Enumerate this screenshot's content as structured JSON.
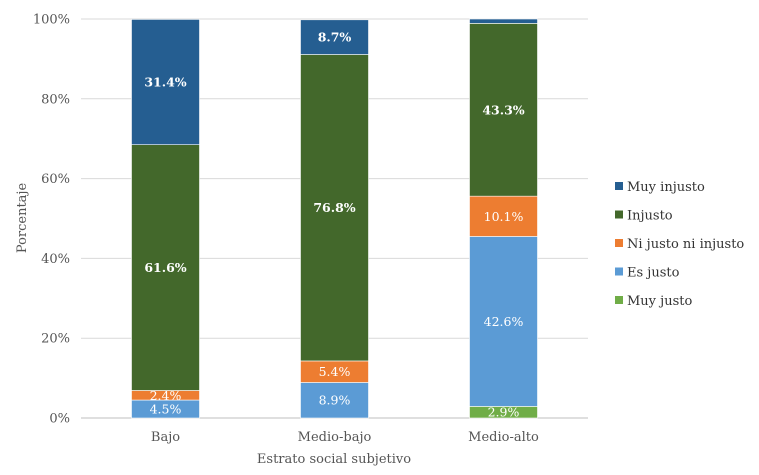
{
  "chart_data": {
    "type": "bar",
    "stacked": true,
    "xlabel": "Estrato social subjetivo",
    "ylabel": "Porcentaje",
    "ylim": [
      0,
      100
    ],
    "yticks": [
      "0%",
      "20%",
      "40%",
      "60%",
      "80%",
      "100%"
    ],
    "categories": [
      "Bajo",
      "Medio-bajo",
      "Medio-alto"
    ],
    "series": [
      {
        "name": "Muy justo",
        "color": "#70ad47",
        "values": [
          0.0,
          0.0,
          2.9
        ],
        "labels": [
          "",
          "",
          "2.9%"
        ],
        "bold": false
      },
      {
        "name": "Es justo",
        "color": "#5b9bd5",
        "values": [
          4.5,
          8.9,
          42.6
        ],
        "labels": [
          "4.5%",
          "8.9%",
          "42.6%"
        ],
        "bold": false
      },
      {
        "name": "Ni justo ni injusto",
        "color": "#ed7d31",
        "values": [
          2.4,
          5.4,
          10.1
        ],
        "labels": [
          "2.4%",
          "5.4%",
          "10.1%"
        ],
        "bold": false
      },
      {
        "name": "Injusto",
        "color": "#43682b",
        "values": [
          61.6,
          76.8,
          43.3
        ],
        "labels": [
          "61.6%",
          "76.8%",
          "43.3%"
        ],
        "bold": true
      },
      {
        "name": "Muy injusto",
        "color": "#255e91",
        "values": [
          31.4,
          8.7,
          1.1
        ],
        "labels": [
          "31.4%",
          "8.7%",
          ""
        ],
        "bold": true
      }
    ],
    "legend_position": "right",
    "grid": true
  }
}
